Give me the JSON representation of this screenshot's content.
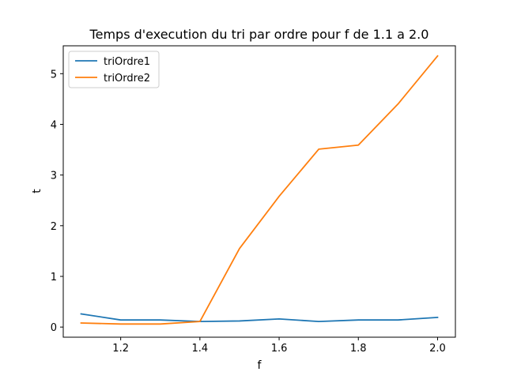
{
  "chart_data": {
    "type": "line",
    "title": "Temps d'execution du tri par ordre pour f de 1.1 a 2.0",
    "xlabel": "f",
    "ylabel": "t",
    "xlim": [
      1.055,
      2.045
    ],
    "ylim": [
      -0.2,
      5.55
    ],
    "xticks": [
      1.2,
      1.4,
      1.6,
      1.8,
      2.0
    ],
    "xtick_labels": [
      "1.2",
      "1.4",
      "1.6",
      "1.8",
      "2.0"
    ],
    "yticks": [
      0,
      1,
      2,
      3,
      4,
      5
    ],
    "ytick_labels": [
      "0",
      "1",
      "2",
      "3",
      "4",
      "5"
    ],
    "legend_position": "top-left",
    "grid": false,
    "x": [
      1.1,
      1.2,
      1.3,
      1.4,
      1.5,
      1.6,
      1.7,
      1.8,
      1.9,
      2.0
    ],
    "series": [
      {
        "name": "triOrdre1",
        "color": "#1f77b4",
        "values": [
          0.26,
          0.14,
          0.14,
          0.11,
          0.12,
          0.16,
          0.11,
          0.14,
          0.14,
          0.19
        ]
      },
      {
        "name": "triOrdre2",
        "color": "#ff7f0e",
        "values": [
          0.08,
          0.06,
          0.06,
          0.11,
          1.55,
          2.58,
          3.51,
          3.59,
          4.4,
          5.35
        ]
      }
    ]
  }
}
